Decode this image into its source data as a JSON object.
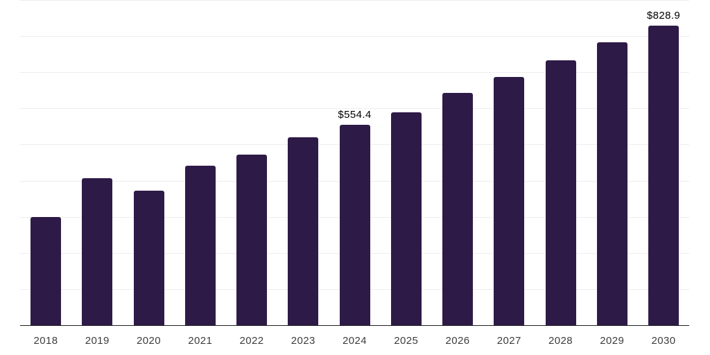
{
  "chart": {
    "background_color": "#ffffff",
    "bar_color": "#2E1A47",
    "gridline_color": "#ededed",
    "axis_line_color": "#1f1f1f",
    "x_label_color": "#3d3d3d",
    "value_label_color": "#000000"
  },
  "chart_data": {
    "type": "bar",
    "title": "",
    "xlabel": "",
    "ylabel": "",
    "categories": [
      "2018",
      "2019",
      "2020",
      "2021",
      "2022",
      "2023",
      "2024",
      "2025",
      "2026",
      "2027",
      "2028",
      "2029",
      "2030"
    ],
    "values": [
      299.0,
      406.5,
      373.0,
      441.5,
      472.5,
      520.5,
      554.4,
      590.0,
      642.0,
      686.5,
      733.0,
      783.5,
      828.9
    ],
    "data_labels": {
      "2024": "$554.4",
      "2030": "$828.9"
    },
    "ylim": [
      0,
      900
    ],
    "gridline_interval": 100,
    "grid": true,
    "y_tick_labels_visible": false,
    "legend": "none"
  }
}
